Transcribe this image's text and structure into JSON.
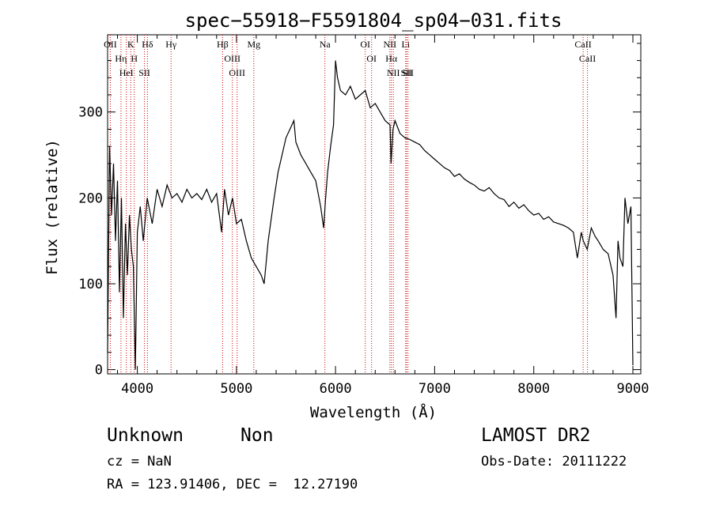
{
  "chart_data": {
    "type": "line",
    "title": "spec−55918−F5591804_sp04−031.fits",
    "xlabel": "Wavelength (Å)",
    "ylabel": "Flux (relative)",
    "xlim": [
      3700,
      9080
    ],
    "ylim": [
      -5,
      390
    ],
    "x_ticks": [
      4000,
      5000,
      6000,
      7000,
      8000,
      9000
    ],
    "y_ticks": [
      0,
      100,
      200,
      300
    ],
    "series": [
      {
        "x": [
          3700,
          3720,
          3740,
          3760,
          3780,
          3800,
          3820,
          3840,
          3860,
          3880,
          3900,
          3920,
          3940,
          3960,
          3980,
          4000,
          4030,
          4060,
          4100,
          4150,
          4200,
          4250,
          4300,
          4350,
          4400,
          4450,
          4500,
          4550,
          4600,
          4650,
          4700,
          4750,
          4800,
          4850,
          4880,
          4920,
          4960,
          5000,
          5050,
          5100,
          5150,
          5200,
          5250,
          5280,
          5320,
          5380,
          5420,
          5460,
          5500,
          5540,
          5580,
          5600,
          5650,
          5700,
          5750,
          5800,
          5850,
          5880,
          5900,
          5920,
          5950,
          5980,
          6000,
          6020,
          6050,
          6100,
          6150,
          6200,
          6250,
          6300,
          6350,
          6400,
          6450,
          6500,
          6550,
          6560,
          6580,
          6600,
          6650,
          6700,
          6750,
          6800,
          6850,
          6900,
          6950,
          7000,
          7050,
          7100,
          7150,
          7200,
          7250,
          7300,
          7350,
          7400,
          7450,
          7500,
          7550,
          7600,
          7650,
          7700,
          7750,
          7800,
          7850,
          7900,
          7950,
          8000,
          8050,
          8100,
          8150,
          8200,
          8250,
          8300,
          8350,
          8400,
          8440,
          8480,
          8500,
          8540,
          8580,
          8620,
          8650,
          8700,
          8750,
          8800,
          8830,
          8850,
          8870,
          8900,
          8920,
          8950,
          8980,
          9000
        ],
        "y": [
          20,
          260,
          180,
          240,
          150,
          220,
          90,
          200,
          60,
          170,
          110,
          180,
          140,
          120,
          0,
          160,
          190,
          150,
          200,
          170,
          210,
          190,
          215,
          200,
          205,
          195,
          210,
          200,
          205,
          198,
          210,
          195,
          205,
          160,
          210,
          180,
          200,
          170,
          175,
          150,
          130,
          120,
          110,
          100,
          150,
          200,
          230,
          250,
          270,
          280,
          290,
          265,
          250,
          240,
          230,
          220,
          190,
          165,
          200,
          230,
          260,
          285,
          360,
          340,
          325,
          320,
          330,
          315,
          320,
          325,
          305,
          310,
          300,
          290,
          285,
          240,
          280,
          290,
          275,
          270,
          268,
          265,
          262,
          255,
          250,
          245,
          240,
          235,
          232,
          225,
          228,
          222,
          218,
          215,
          210,
          208,
          212,
          205,
          200,
          198,
          190,
          195,
          188,
          192,
          185,
          180,
          182,
          175,
          178,
          172,
          170,
          168,
          165,
          160,
          130,
          160,
          150,
          140,
          165,
          155,
          150,
          140,
          135,
          110,
          60,
          150,
          130,
          120,
          200,
          170,
          190,
          5
        ]
      }
    ],
    "lines": [
      {
        "x": 3727,
        "label": "OII"
      },
      {
        "x": 3835,
        "label": "Hη"
      },
      {
        "x": 3889,
        "label": "HeI"
      },
      {
        "x": 3934,
        "label": "K"
      },
      {
        "x": 3969,
        "label": "H"
      },
      {
        "x": 4072,
        "label": "SII"
      },
      {
        "x": 4102,
        "label": "Hδ"
      },
      {
        "x": 4340,
        "label": "Hγ"
      },
      {
        "x": 4861,
        "label": "Hβ"
      },
      {
        "x": 4959,
        "label": "OIII"
      },
      {
        "x": 5007,
        "label": "OIII"
      },
      {
        "x": 5175,
        "label": "Mg"
      },
      {
        "x": 5893,
        "label": "Na"
      },
      {
        "x": 6300,
        "label": "OI"
      },
      {
        "x": 6364,
        "label": "OI"
      },
      {
        "x": 6548,
        "label": "NII"
      },
      {
        "x": 6563,
        "label": "Hα"
      },
      {
        "x": 6583,
        "label": "NII"
      },
      {
        "x": 6708,
        "label": "Li"
      },
      {
        "x": 6716,
        "label": "SII"
      },
      {
        "x": 6731,
        "label": "SII"
      },
      {
        "x": 8498,
        "label": "CaII"
      },
      {
        "x": 8542,
        "label": "CaII"
      }
    ],
    "grid": false
  },
  "info": {
    "class_label": "Unknown",
    "subclass_label": "Non",
    "survey": "LAMOST DR2",
    "cz": "cz = NaN",
    "obs_date": "Obs-Date: 20111222",
    "coords": "RA = 123.91406, DEC =  12.27190"
  }
}
